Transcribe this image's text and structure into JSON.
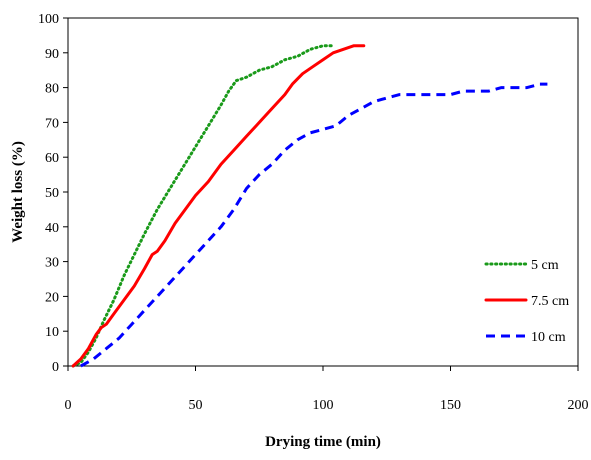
{
  "chart_data": {
    "type": "line",
    "title": "",
    "xlabel": "Drying time (min)",
    "ylabel": "Weight loss (%)",
    "xlim": [
      0,
      200
    ],
    "ylim": [
      0,
      100
    ],
    "x_ticks": [
      0,
      50,
      100,
      150,
      200
    ],
    "y_ticks": [
      0,
      10,
      20,
      30,
      40,
      50,
      60,
      70,
      80,
      90,
      100
    ],
    "grid": false,
    "legend_position": "right",
    "series": [
      {
        "name": "5 cm",
        "color": "#1a9a1a",
        "style": "dotted",
        "points": [
          [
            2,
            0
          ],
          [
            5,
            1
          ],
          [
            8,
            4
          ],
          [
            11,
            8
          ],
          [
            14,
            13
          ],
          [
            18,
            19
          ],
          [
            22,
            26
          ],
          [
            26,
            32
          ],
          [
            30,
            38
          ],
          [
            35,
            45
          ],
          [
            40,
            51
          ],
          [
            45,
            57
          ],
          [
            50,
            63
          ],
          [
            55,
            69
          ],
          [
            60,
            75
          ],
          [
            63,
            79
          ],
          [
            66,
            82
          ],
          [
            70,
            83
          ],
          [
            75,
            85
          ],
          [
            80,
            86
          ],
          [
            85,
            88
          ],
          [
            90,
            89
          ],
          [
            95,
            91
          ],
          [
            100,
            92
          ],
          [
            104,
            92
          ]
        ]
      },
      {
        "name": "7.5 cm",
        "color": "#ff0000",
        "style": "solid",
        "points": [
          [
            2,
            0
          ],
          [
            5,
            2
          ],
          [
            8,
            5
          ],
          [
            11,
            9
          ],
          [
            13,
            11
          ],
          [
            15,
            12
          ],
          [
            18,
            15
          ],
          [
            22,
            19
          ],
          [
            26,
            23
          ],
          [
            30,
            28
          ],
          [
            33,
            32
          ],
          [
            35,
            33
          ],
          [
            38,
            36
          ],
          [
            42,
            41
          ],
          [
            46,
            45
          ],
          [
            50,
            49
          ],
          [
            55,
            53
          ],
          [
            60,
            58
          ],
          [
            65,
            62
          ],
          [
            70,
            66
          ],
          [
            75,
            70
          ],
          [
            80,
            74
          ],
          [
            85,
            78
          ],
          [
            88,
            81
          ],
          [
            92,
            84
          ],
          [
            96,
            86
          ],
          [
            100,
            88
          ],
          [
            104,
            90
          ],
          [
            108,
            91
          ],
          [
            112,
            92
          ],
          [
            116,
            92
          ]
        ]
      },
      {
        "name": "10 cm",
        "color": "#0000ff",
        "style": "dashed",
        "points": [
          [
            5,
            0
          ],
          [
            10,
            2
          ],
          [
            15,
            5
          ],
          [
            20,
            8
          ],
          [
            25,
            12
          ],
          [
            30,
            16
          ],
          [
            35,
            20
          ],
          [
            40,
            24
          ],
          [
            45,
            28
          ],
          [
            50,
            32
          ],
          [
            55,
            36
          ],
          [
            60,
            40
          ],
          [
            65,
            45
          ],
          [
            70,
            51
          ],
          [
            75,
            55
          ],
          [
            80,
            58
          ],
          [
            85,
            62
          ],
          [
            90,
            65
          ],
          [
            95,
            67
          ],
          [
            100,
            68
          ],
          [
            105,
            69
          ],
          [
            110,
            72
          ],
          [
            115,
            74
          ],
          [
            120,
            76
          ],
          [
            125,
            77
          ],
          [
            130,
            78
          ],
          [
            135,
            78
          ],
          [
            140,
            78
          ],
          [
            145,
            78
          ],
          [
            150,
            78
          ],
          [
            155,
            79
          ],
          [
            160,
            79
          ],
          [
            165,
            79
          ],
          [
            170,
            80
          ],
          [
            175,
            80
          ],
          [
            180,
            80
          ],
          [
            185,
            81
          ],
          [
            188,
            81
          ]
        ]
      }
    ]
  }
}
